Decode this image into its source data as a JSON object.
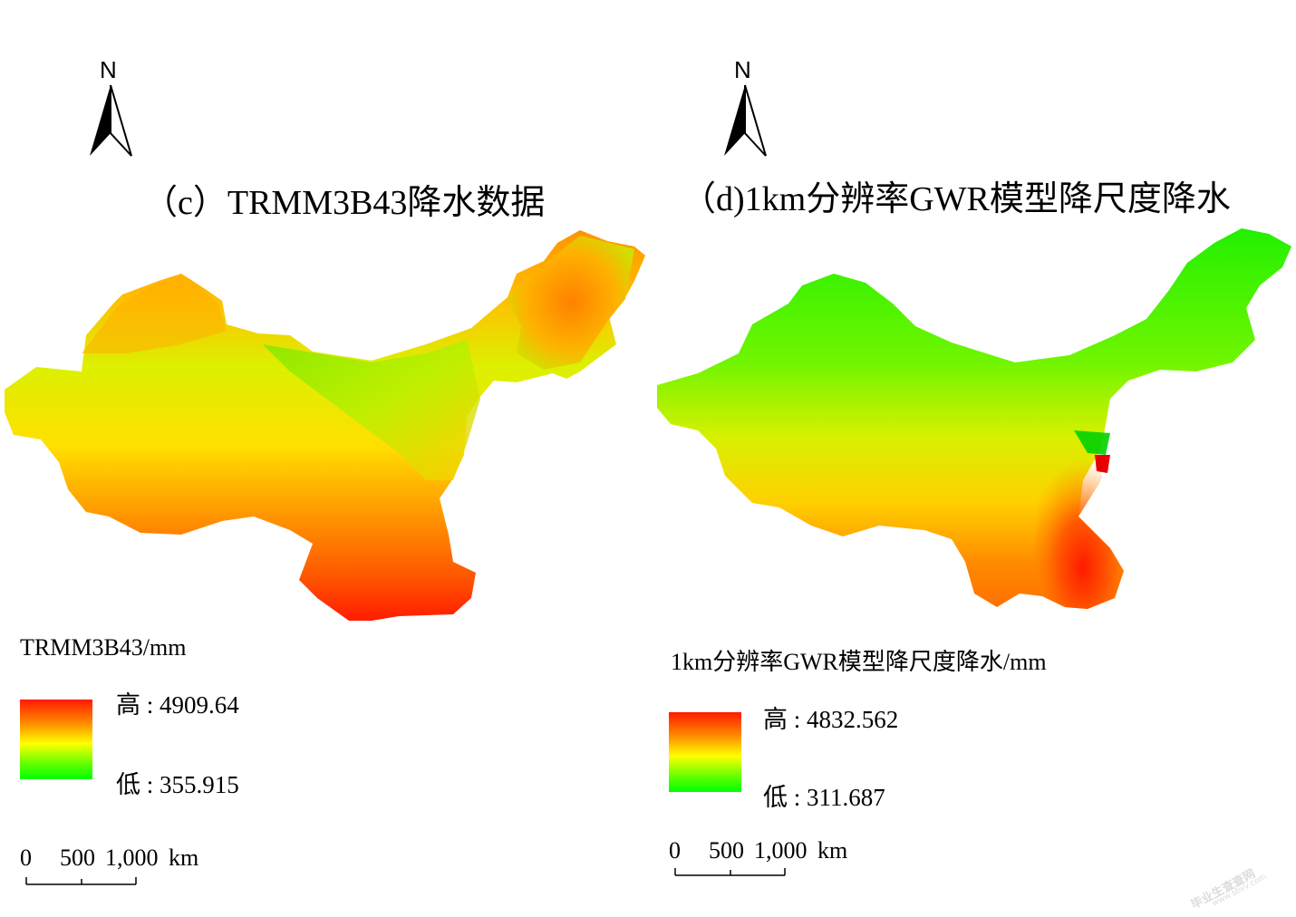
{
  "panel_c": {
    "north_label": "N",
    "title": "（c）TRMM3B43降水数据",
    "legend_title": "TRMM3B43/mm",
    "legend_high": "高 : 4909.64",
    "legend_low": "低 : 355.915",
    "scale_labels": [
      "0",
      "500",
      "1,000",
      "km"
    ]
  },
  "panel_d": {
    "north_label": "N",
    "title": "（d)1km分辨率GWR模型降尺度降水",
    "legend_title": "1km分辨率GWR模型降尺度降水/mm",
    "legend_high": "高 : 4832.562",
    "legend_low": "低 : 311.687",
    "scale_labels": [
      "0",
      "500",
      "1,000",
      "km"
    ]
  },
  "colors": {
    "high": "#ff1a00",
    "mid_high": "#ff8c00",
    "mid": "#ffff00",
    "low": "#00ff00"
  },
  "watermark": {
    "line1": "毕业生查查网",
    "line2": "www.sbvv.com"
  }
}
